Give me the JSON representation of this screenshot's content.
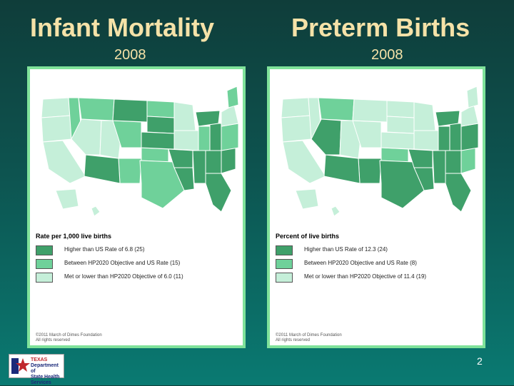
{
  "slide": {
    "left": {
      "title": "Infant Mortality",
      "year": "2008"
    },
    "right": {
      "title": "Preterm Births",
      "year": "2008"
    },
    "page_number": "2"
  },
  "colors": {
    "higher": "#3fa06a",
    "between": "#6fd19a",
    "met": "#c5efd9",
    "panel_border": "#7fe29a",
    "title_text": "#f5e2a8"
  },
  "panels": [
    {
      "legend_title": "Rate per 1,000 live births",
      "legend": [
        {
          "label": "Higher than US Rate of 6.8 (25)",
          "color_key": "higher"
        },
        {
          "label": "Between HP2020 Objective and US Rate (15)",
          "color_key": "between"
        },
        {
          "label": "Met or lower than HP2020 Objective of 6.0 (11)",
          "color_key": "met"
        }
      ],
      "copyright_line1": "©2011 March of Dimes Foundation",
      "copyright_line2": "All rights reserved"
    },
    {
      "legend_title": "Percent of live births",
      "legend": [
        {
          "label": "Higher than US Rate of 12.3 (24)",
          "color_key": "higher"
        },
        {
          "label": "Between HP2020 Objective and US Rate (8)",
          "color_key": "between"
        },
        {
          "label": "Met or lower than HP2020 Objective of 11.4 (19)",
          "color_key": "met"
        }
      ],
      "copyright_line1": "©2011 March of Dimes Foundation",
      "copyright_line2": "All rights reserved"
    }
  ],
  "logo": {
    "line1": "TEXAS",
    "line2": "Department of",
    "line3": "State Health Services"
  }
}
